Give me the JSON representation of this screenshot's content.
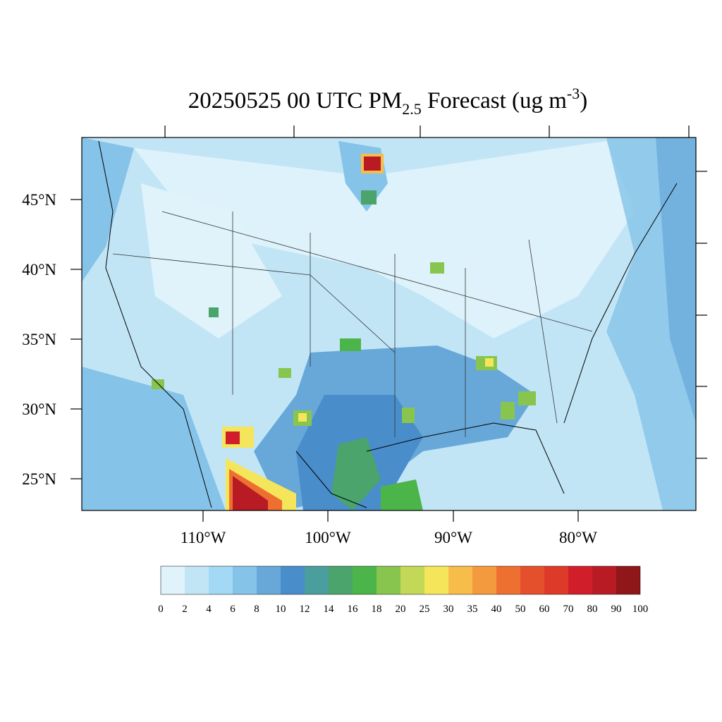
{
  "title": {
    "main": "20250525 00 UTC PM",
    "subscript": "2.5",
    "middle": " Forecast (ug m",
    "superscript": "-3",
    "end": ")"
  },
  "latitude_labels": [
    "45°N",
    "40°N",
    "35°N",
    "30°N",
    "25°N"
  ],
  "longitude_labels": [
    "110°W",
    "100°W",
    "90°W",
    "80°W"
  ],
  "colorbar": {
    "levels": [
      0,
      2,
      4,
      6,
      8,
      10,
      12,
      14,
      16,
      18,
      20,
      25,
      30,
      35,
      40,
      50,
      60,
      70,
      80,
      90,
      100
    ],
    "colors": [
      "#e0f3fb",
      "#c2e5f6",
      "#a3d9f5",
      "#86c3e8",
      "#67a8d8",
      "#4a8dcb",
      "#4a9e9e",
      "#4aa46c",
      "#4cb54a",
      "#87c54f",
      "#c3d857",
      "#f5e55a",
      "#f6bd4a",
      "#f49a3e",
      "#ee7030",
      "#e4502b",
      "#dd3a2a",
      "#d01f2a",
      "#b81b24",
      "#8f1719"
    ]
  }
}
